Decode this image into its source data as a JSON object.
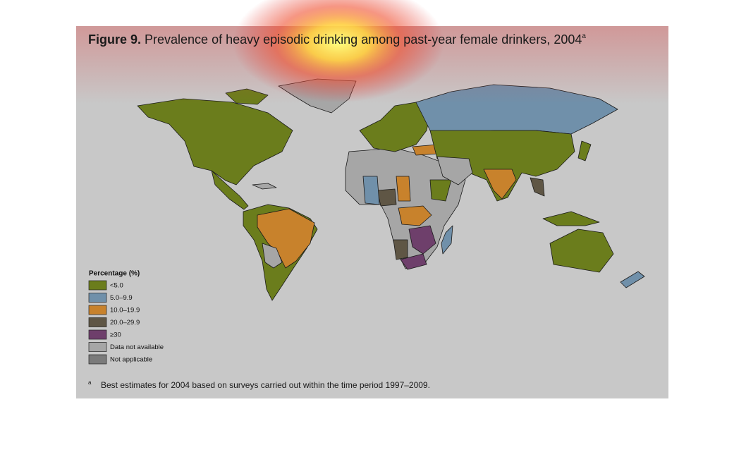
{
  "figure": {
    "label": "Figure 9.",
    "title": "Prevalence of heavy episodic drinking among past-year female drinkers, 2004",
    "title_note": "a"
  },
  "legend": {
    "title": "Percentage (%)",
    "items": [
      {
        "label": "<5.0",
        "color": "#6b7d1c"
      },
      {
        "label": "5.0–9.9",
        "color": "#7090aa"
      },
      {
        "label": "10.0–19.9",
        "color": "#c8822c"
      },
      {
        "label": "20.0–29.9",
        "color": "#5f5645"
      },
      {
        "label": "≥30",
        "color": "#6e3f6b"
      },
      {
        "label": "Data not available",
        "color": "#a6a6a6"
      },
      {
        "label": "Not applicable",
        "color": "#7b7b7b"
      }
    ]
  },
  "footnote": {
    "marker": "a",
    "text": "Best estimates for 2004 based on surveys carried out within the time period 1997–2009."
  }
}
